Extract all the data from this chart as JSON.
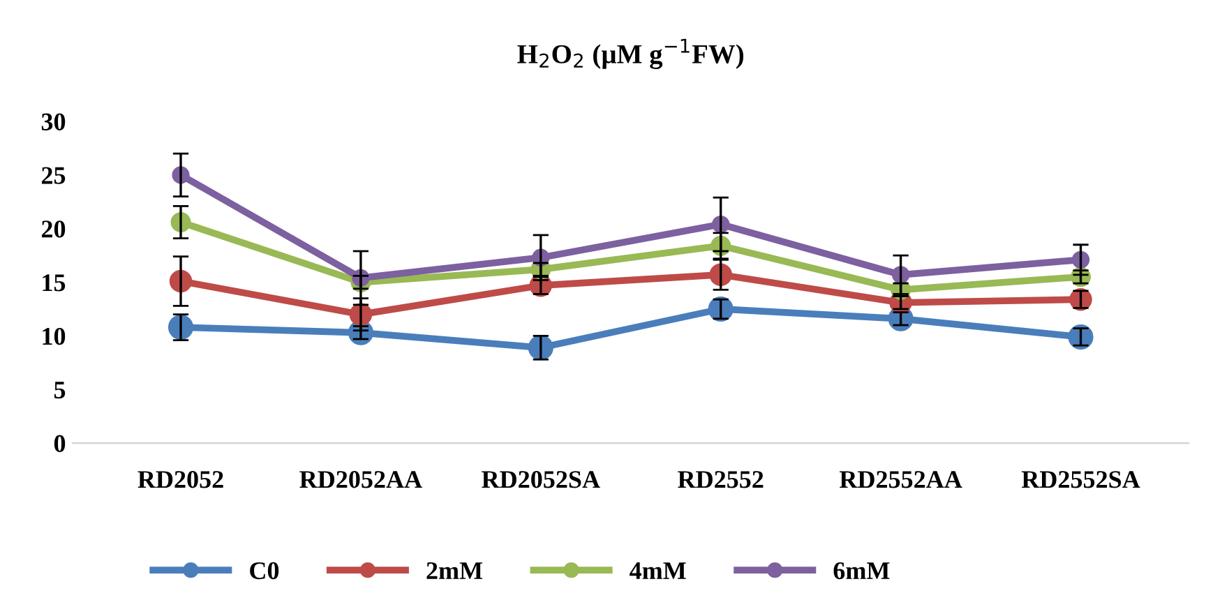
{
  "chart_data": {
    "type": "line",
    "title": "H$_{2}$O$_{2}$ (µM g$^{−1}$FW)",
    "categories": [
      "RD2052",
      "RD2052AA",
      "RD2052SA",
      "RD2552",
      "RD2552AA",
      "RD2552SA"
    ],
    "series": [
      {
        "name": "C0",
        "color": "#4a7ebb",
        "values": [
          10.8,
          10.3,
          8.9,
          12.5,
          11.6,
          9.9
        ],
        "errors": [
          1.2,
          0.6,
          1.1,
          0.9,
          0.6,
          0.8
        ]
      },
      {
        "name": "2mM",
        "color": "#be4b48",
        "values": [
          15.1,
          12.0,
          14.7,
          15.7,
          13.1,
          13.4
        ],
        "errors": [
          2.3,
          1.5,
          0.8,
          1.4,
          0.6,
          0.8
        ]
      },
      {
        "name": "4mM",
        "color": "#98b954",
        "values": [
          20.6,
          15.0,
          16.2,
          18.4,
          14.3,
          15.5
        ],
        "errors": [
          1.5,
          0.6,
          0.6,
          1.2,
          0.6,
          0.6
        ]
      },
      {
        "name": "6mM",
        "color": "#7d60a0",
        "values": [
          25.0,
          15.4,
          17.3,
          20.4,
          15.7,
          17.1
        ],
        "errors": [
          2.0,
          2.5,
          2.1,
          2.5,
          1.8,
          1.4
        ]
      }
    ],
    "ylim": [
      0,
      30
    ],
    "yticks": [
      0,
      5,
      10,
      15,
      20,
      25,
      30
    ],
    "grid": false,
    "legend": "bottom",
    "marker": "circle",
    "line_style": "solid"
  }
}
